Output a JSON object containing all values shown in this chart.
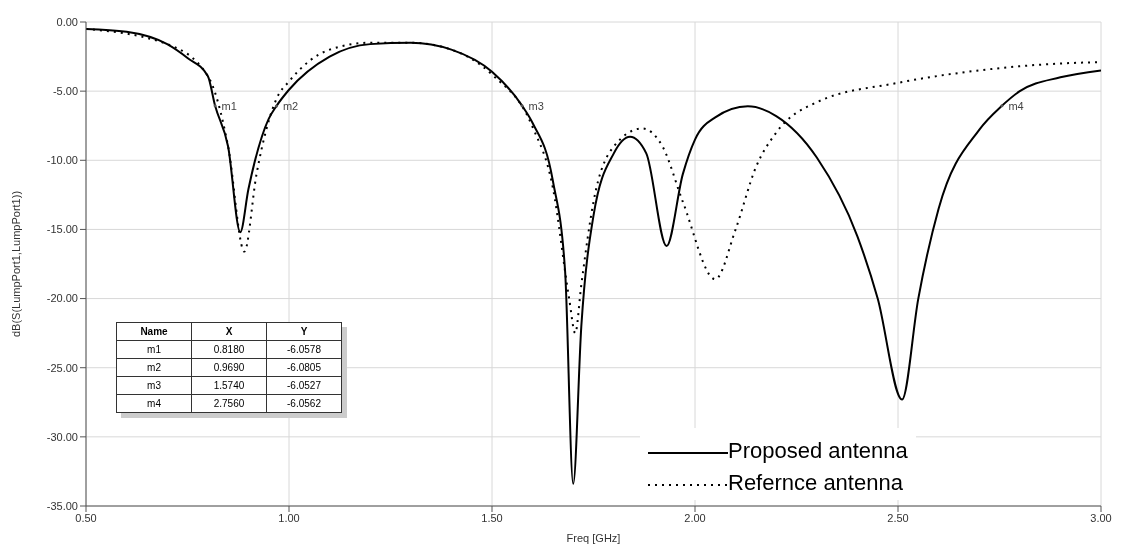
{
  "chart_data": {
    "type": "line",
    "xlabel": "Freq [GHz]",
    "ylabel": "dB(S(LumpPort1,LumpPort1))",
    "xlim": [
      0.5,
      3.0
    ],
    "ylim": [
      -35,
      0
    ],
    "xticks": [
      {
        "value": 0.5,
        "label": "0.50"
      },
      {
        "value": 1,
        "label": "1.00"
      },
      {
        "value": 1.5,
        "label": "1.50"
      },
      {
        "value": 2,
        "label": "2.00"
      },
      {
        "value": 2.5,
        "label": "2.50"
      },
      {
        "value": 3,
        "label": "3.00"
      }
    ],
    "yticks": [
      {
        "value": 0,
        "label": "0.00"
      },
      {
        "value": -5,
        "label": "-5.00"
      },
      {
        "value": -10,
        "label": "-10.00"
      },
      {
        "value": -15,
        "label": "-15.00"
      },
      {
        "value": -20,
        "label": "-20.00"
      },
      {
        "value": -25,
        "label": "-25.00"
      },
      {
        "value": -30,
        "label": "-30.00"
      },
      {
        "value": -35,
        "label": "-35.00"
      }
    ],
    "grid": true,
    "legend": "bottom right",
    "marker": "none",
    "series": [
      {
        "name": "Proposed antenna",
        "color": "#000000",
        "line_style": "solid",
        "x": [
          0.5,
          0.6,
          0.7,
          0.75,
          0.8,
          0.818,
          0.85,
          0.88,
          0.9,
          0.95,
          0.969,
          1.0,
          1.1,
          1.2,
          1.3,
          1.4,
          1.5,
          1.574,
          1.6,
          1.65,
          1.68,
          1.7,
          1.72,
          1.75,
          1.8,
          1.84,
          1.88,
          1.93,
          1.97,
          2.0,
          2.05,
          2.13,
          2.2,
          2.3,
          2.4,
          2.45,
          2.51,
          2.55,
          2.6,
          2.7,
          2.756,
          2.8,
          2.9,
          3.0
        ],
        "values": [
          -0.5,
          -0.7,
          -1.6,
          -2.6,
          -3.9,
          -6.06,
          -9.0,
          -15.2,
          -12.1,
          -7.0,
          -6.08,
          -4.9,
          -2.5,
          -1.6,
          -1.5,
          -2.0,
          -3.6,
          -6.05,
          -7.3,
          -11.5,
          -18,
          -33.4,
          -22,
          -14,
          -9.5,
          -8.3,
          -9.5,
          -16.2,
          -11,
          -8.5,
          -6.9,
          -6.1,
          -6.8,
          -9.8,
          -15.5,
          -20,
          -27.3,
          -20,
          -13.5,
          -7.8,
          -6.06,
          -5.0,
          -4.0,
          -3.5
        ]
      },
      {
        "name": "Refernce antenna",
        "color": "#000000",
        "line_style": "dotted",
        "x": [
          0.5,
          0.7,
          0.8,
          0.85,
          0.89,
          0.92,
          0.97,
          1.0,
          1.1,
          1.2,
          1.3,
          1.4,
          1.5,
          1.6,
          1.65,
          1.69,
          1.705,
          1.72,
          1.75,
          1.8,
          1.87,
          1.92,
          1.97,
          2.05,
          2.1,
          2.15,
          2.2,
          2.3,
          2.5,
          2.7,
          2.9,
          3.0
        ],
        "values": [
          -0.5,
          -1.6,
          -3.9,
          -9,
          -16.6,
          -11,
          -5.5,
          -4.3,
          -2.0,
          -1.5,
          -1.5,
          -2.0,
          -3.8,
          -7.6,
          -12,
          -20,
          -22.5,
          -19,
          -13,
          -9,
          -7.7,
          -9,
          -13,
          -18.6,
          -15,
          -10.5,
          -8,
          -5.8,
          -4.4,
          -3.5,
          -3.0,
          -2.9
        ]
      }
    ],
    "annotations": [
      {
        "text": "m1",
        "x": 0.818,
        "y": -6.0578
      },
      {
        "text": "m2",
        "x": 0.969,
        "y": -6.0805
      },
      {
        "text": "m3",
        "x": 1.574,
        "y": -6.0527
      },
      {
        "text": "m4",
        "x": 2.756,
        "y": -6.0562
      },
      "Name",
      "X",
      "Y",
      "m1",
      "0.8180",
      "-6.0578",
      "m2",
      "0.9690",
      "-6.0805",
      "m3",
      "1.5740",
      "-6.0527",
      "m4",
      "2.7560",
      "-6.0562"
    ]
  }
}
